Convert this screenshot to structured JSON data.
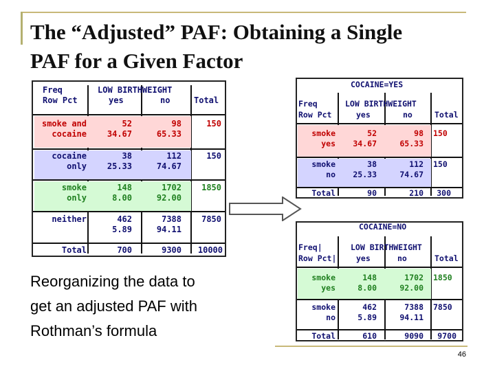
{
  "slide": {
    "title_line1": "The “Adjusted” PAF: Obtaining a Single",
    "title_line2": "PAF for a Given Factor",
    "body": [
      "Reorganizing the data to",
      "get an adjusted PAF with",
      "Rothman’s formula"
    ],
    "page_number": "46"
  },
  "colors": {
    "pink": "#ffd7d7",
    "blue": "#d4d4ff",
    "green": "#d5fad5",
    "text_blue": "#101070",
    "text_red": "#c00000",
    "border": "#c8b878"
  },
  "left_table": {
    "hdr_freq": "Freq",
    "hdr_rowpct": "Row Pct",
    "hdr_group": "LOW BIRTHWEIGHT",
    "hdr_yes": "yes",
    "hdr_no": "no",
    "hdr_total": "Total",
    "rows": [
      {
        "label1": "smoke and",
        "label2": "cocaine",
        "yes": "52",
        "yes_pct": "34.67",
        "no": "98",
        "no_pct": "65.33",
        "total": "150"
      },
      {
        "label1": "cocaine",
        "label2": "only",
        "yes": "38",
        "yes_pct": "25.33",
        "no": "112",
        "no_pct": "74.67",
        "total": "150"
      },
      {
        "label1": "smoke",
        "label2": "only",
        "yes": "148",
        "yes_pct": "8.00",
        "no": "1702",
        "no_pct": "92.00",
        "total": "1850"
      },
      {
        "label1": "neither",
        "label2": "",
        "yes": "462",
        "yes_pct": "5.89",
        "no": "7388",
        "no_pct": "94.11",
        "total": "7850"
      }
    ],
    "total_label": "Total",
    "total_yes": "700",
    "total_no": "9300",
    "total_all": "10000"
  },
  "right_top_table": {
    "caption": "COCAINE=YES",
    "hdr_freq": "Freq",
    "hdr_rowpct": "Row Pct",
    "hdr_group": "LOW BIRTHWEIGHT",
    "hdr_yes": "yes",
    "hdr_no": "no",
    "hdr_total": "Total",
    "rows": [
      {
        "label1": "smoke",
        "label2": "yes",
        "yes": "52",
        "yes_pct": "34.67",
        "no": "98",
        "no_pct": "65.33",
        "total": "150"
      },
      {
        "label1": "smoke",
        "label2": "no",
        "yes": "38",
        "yes_pct": "25.33",
        "no": "112",
        "no_pct": "74.67",
        "total": "150"
      }
    ],
    "total_label": "Total",
    "total_yes": "90",
    "total_no": "210",
    "total_all": "300"
  },
  "right_bottom_table": {
    "caption": "COCAINE=NO",
    "hdr_freq": "Freq|",
    "hdr_rowpct": "Row Pct|",
    "hdr_group": "LOW BIRTHWEIGHT",
    "hdr_yes": "yes",
    "hdr_no": "no",
    "hdr_total": "Total",
    "rows": [
      {
        "label1": "smoke",
        "label2": "yes",
        "yes": "148",
        "yes_pct": "8.00",
        "no": "1702",
        "no_pct": "92.00",
        "total": "1850"
      },
      {
        "label1": "smoke",
        "label2": "no",
        "yes": "462",
        "yes_pct": "5.89",
        "no": "7388",
        "no_pct": "94.11",
        "total": "7850"
      }
    ],
    "total_label": "Total",
    "total_yes": "610",
    "total_no": "9090",
    "total_all": "9700"
  }
}
